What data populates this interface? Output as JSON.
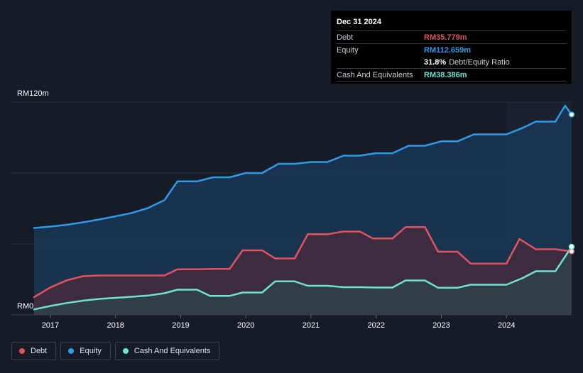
{
  "tooltip": {
    "date": "Dec 31 2024",
    "debt_label": "Debt",
    "debt_value": "RM35.779m",
    "equity_label": "Equity",
    "equity_value": "RM112.659m",
    "ratio_value": "31.8%",
    "ratio_label": "Debt/Equity Ratio",
    "cash_label": "Cash And Equivalents",
    "cash_value": "RM38.386m"
  },
  "legend": {
    "debt": "Debt",
    "equity": "Equity",
    "cash": "Cash And Equivalents"
  },
  "colors": {
    "debt": "#e0535f",
    "equity": "#2f9be8",
    "cash": "#6fe3d1",
    "background": "#151c28"
  },
  "chart_data": {
    "type": "area",
    "title": "",
    "xlabel": "",
    "ylabel": "",
    "ylim": [
      0,
      120
    ],
    "xlim": [
      2016.75,
      2025.0
    ],
    "y_tick_labels": [
      "RM0",
      "RM120m"
    ],
    "x_tick_labels": [
      "2017",
      "2018",
      "2019",
      "2020",
      "2021",
      "2022",
      "2023",
      "2024"
    ],
    "x_ticks": [
      2017,
      2018,
      2019,
      2020,
      2021,
      2022,
      2023,
      2024
    ],
    "series": [
      {
        "name": "Equity",
        "points": [
          [
            2016.75,
            49
          ],
          [
            2017.0,
            49.8
          ],
          [
            2017.25,
            50.8
          ],
          [
            2017.5,
            52.2
          ],
          [
            2017.75,
            53.8
          ],
          [
            2018.0,
            55.6
          ],
          [
            2018.25,
            57.5
          ],
          [
            2018.5,
            60.3
          ],
          [
            2018.75,
            64.7
          ],
          [
            2018.95,
            75.3
          ],
          [
            2019.25,
            75.3
          ],
          [
            2019.5,
            77.6
          ],
          [
            2019.75,
            77.6
          ],
          [
            2020.0,
            80
          ],
          [
            2020.25,
            80
          ],
          [
            2020.5,
            85.2
          ],
          [
            2020.75,
            85.2
          ],
          [
            2021.0,
            86.2
          ],
          [
            2021.25,
            86.2
          ],
          [
            2021.5,
            89.8
          ],
          [
            2021.75,
            89.8
          ],
          [
            2022.0,
            91.2
          ],
          [
            2022.25,
            91.2
          ],
          [
            2022.5,
            95.4
          ],
          [
            2022.75,
            95.4
          ],
          [
            2023.0,
            97.9
          ],
          [
            2023.25,
            97.9
          ],
          [
            2023.5,
            101.8
          ],
          [
            2023.75,
            101.8
          ],
          [
            2024.0,
            101.8
          ],
          [
            2024.25,
            105.5
          ],
          [
            2024.45,
            109
          ],
          [
            2024.75,
            109
          ],
          [
            2024.9,
            118
          ],
          [
            2025.0,
            113
          ]
        ]
      },
      {
        "name": "Debt",
        "points": [
          [
            2016.75,
            10
          ],
          [
            2017.0,
            15.5
          ],
          [
            2017.25,
            19.5
          ],
          [
            2017.5,
            21.8
          ],
          [
            2017.75,
            22.2
          ],
          [
            2018.0,
            22.2
          ],
          [
            2018.25,
            22.2
          ],
          [
            2018.5,
            22.2
          ],
          [
            2018.75,
            22.2
          ],
          [
            2018.95,
            25.7
          ],
          [
            2019.25,
            25.7
          ],
          [
            2019.5,
            25.9
          ],
          [
            2019.75,
            25.9
          ],
          [
            2019.95,
            36.4
          ],
          [
            2020.25,
            36.4
          ],
          [
            2020.45,
            31.8
          ],
          [
            2020.75,
            31.8
          ],
          [
            2020.95,
            45.5
          ],
          [
            2021.25,
            45.5
          ],
          [
            2021.5,
            47
          ],
          [
            2021.75,
            47
          ],
          [
            2021.95,
            43.1
          ],
          [
            2022.25,
            43.1
          ],
          [
            2022.45,
            49.5
          ],
          [
            2022.75,
            49.5
          ],
          [
            2022.95,
            35.6
          ],
          [
            2023.25,
            35.6
          ],
          [
            2023.45,
            28.9
          ],
          [
            2023.75,
            28.9
          ],
          [
            2024.0,
            28.9
          ],
          [
            2024.2,
            42.8
          ],
          [
            2024.45,
            37
          ],
          [
            2024.75,
            37
          ],
          [
            2025.0,
            35.8
          ]
        ]
      },
      {
        "name": "Cash And Equivalents",
        "points": [
          [
            2016.75,
            3.1
          ],
          [
            2017.0,
            5
          ],
          [
            2017.25,
            6.7
          ],
          [
            2017.5,
            8
          ],
          [
            2017.75,
            9
          ],
          [
            2018.0,
            9.6
          ],
          [
            2018.25,
            10.2
          ],
          [
            2018.5,
            10.9
          ],
          [
            2018.75,
            12.2
          ],
          [
            2018.95,
            14.2
          ],
          [
            2019.25,
            14.2
          ],
          [
            2019.45,
            10.7
          ],
          [
            2019.75,
            10.7
          ],
          [
            2019.95,
            12.6
          ],
          [
            2020.25,
            12.6
          ],
          [
            2020.45,
            18.9
          ],
          [
            2020.75,
            18.9
          ],
          [
            2020.95,
            16.4
          ],
          [
            2021.25,
            16.4
          ],
          [
            2021.5,
            15.6
          ],
          [
            2021.75,
            15.6
          ],
          [
            2022.0,
            15.4
          ],
          [
            2022.25,
            15.4
          ],
          [
            2022.45,
            19.4
          ],
          [
            2022.75,
            19.4
          ],
          [
            2022.95,
            15.3
          ],
          [
            2023.25,
            15.3
          ],
          [
            2023.45,
            17
          ],
          [
            2023.75,
            17
          ],
          [
            2024.0,
            17
          ],
          [
            2024.25,
            20.8
          ],
          [
            2024.45,
            24.6
          ],
          [
            2024.75,
            24.6
          ],
          [
            2025.0,
            38.4
          ]
        ]
      }
    ]
  }
}
